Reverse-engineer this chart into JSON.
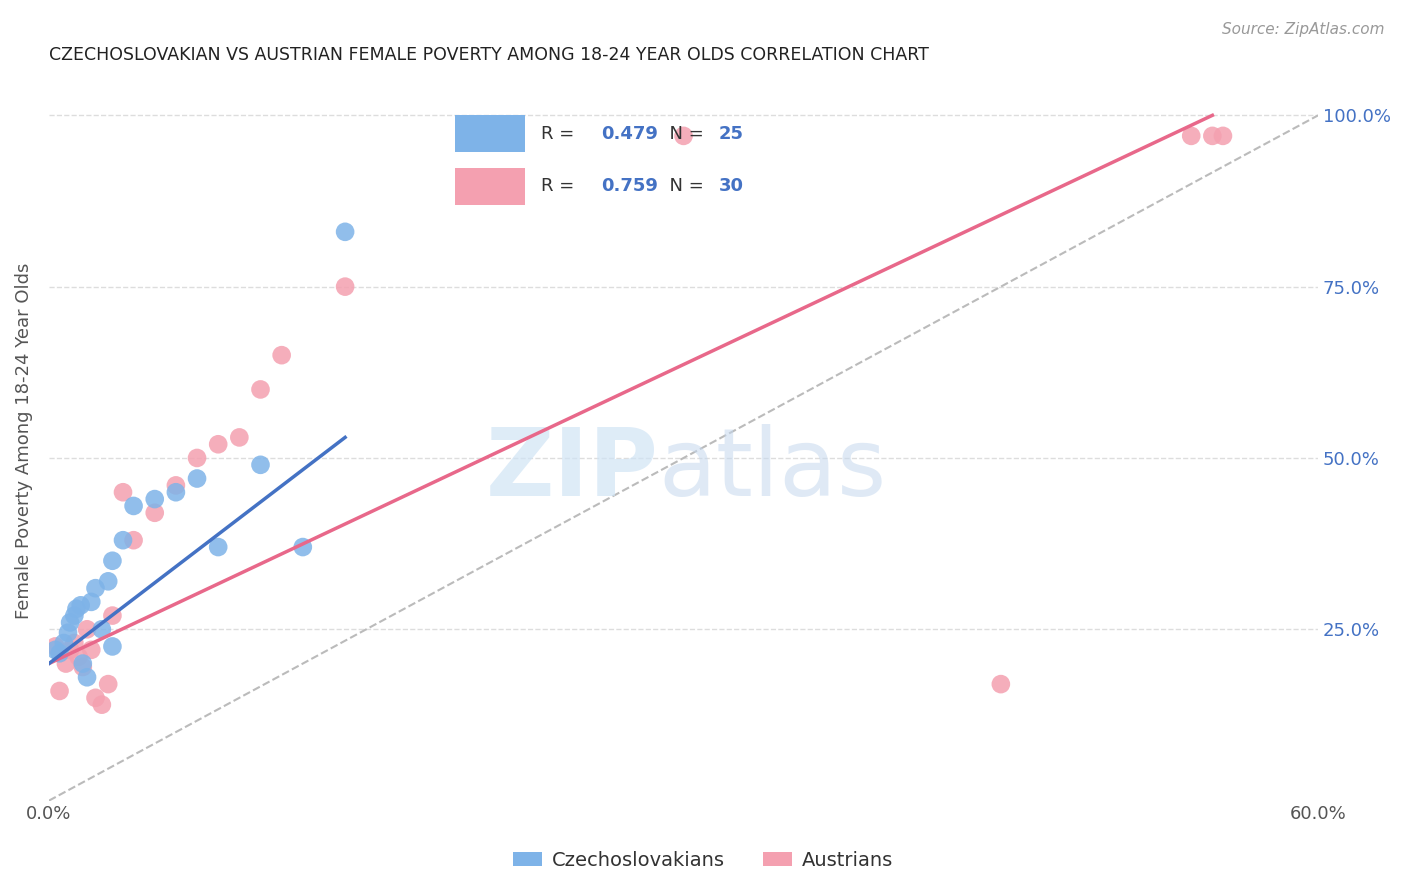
{
  "title": "CZECHOSLOVAKIAN VS AUSTRIAN FEMALE POVERTY AMONG 18-24 YEAR OLDS CORRELATION CHART",
  "source": "Source: ZipAtlas.com",
  "ylabel": "Female Poverty Among 18-24 Year Olds",
  "xmin": 0.0,
  "xmax": 60.0,
  "ymin": 0.0,
  "ymax": 105.0,
  "yticks_right": [
    25.0,
    50.0,
    75.0,
    100.0
  ],
  "czech_color": "#7EB3E8",
  "austrian_color": "#F4A0B0",
  "czech_line_color": "#4472C4",
  "austrian_line_color": "#E8688A",
  "czech_R": 0.479,
  "czech_N": 25,
  "austrian_R": 0.759,
  "austrian_N": 30,
  "czech_scatter_x": [
    0.3,
    0.5,
    0.7,
    0.9,
    1.0,
    1.2,
    1.3,
    1.5,
    1.6,
    1.8,
    2.0,
    2.2,
    2.5,
    2.8,
    3.0,
    3.5,
    4.0,
    5.0,
    6.0,
    7.0,
    8.0,
    10.0,
    12.0,
    14.0,
    3.0
  ],
  "czech_scatter_y": [
    22.0,
    21.5,
    23.0,
    24.5,
    26.0,
    27.0,
    28.0,
    28.5,
    20.0,
    18.0,
    29.0,
    31.0,
    25.0,
    32.0,
    35.0,
    38.0,
    43.0,
    44.0,
    45.0,
    47.0,
    37.0,
    49.0,
    37.0,
    83.0,
    22.5
  ],
  "austrian_scatter_x": [
    0.3,
    0.5,
    0.8,
    1.0,
    1.2,
    1.4,
    1.6,
    1.8,
    2.0,
    2.2,
    2.5,
    2.8,
    3.0,
    3.5,
    4.0,
    5.0,
    6.0,
    7.0,
    8.0,
    9.0,
    10.0,
    11.0,
    14.0,
    20.0,
    22.0,
    30.0,
    45.0,
    54.0,
    55.0,
    55.5
  ],
  "austrian_scatter_y": [
    22.5,
    16.0,
    20.0,
    22.0,
    23.0,
    21.0,
    19.5,
    25.0,
    22.0,
    15.0,
    14.0,
    17.0,
    27.0,
    45.0,
    38.0,
    42.0,
    46.0,
    50.0,
    52.0,
    53.0,
    60.0,
    65.0,
    75.0,
    97.0,
    97.0,
    97.0,
    17.0,
    97.0,
    97.0,
    97.0
  ],
  "czech_line_x0": 0.0,
  "czech_line_y0": 20.0,
  "czech_line_x1": 14.0,
  "czech_line_y1": 53.0,
  "austrian_line_x0": 0.0,
  "austrian_line_y0": 20.0,
  "austrian_line_x1": 55.0,
  "austrian_line_y1": 100.0,
  "ref_line_x0": 0.0,
  "ref_line_y0": 0.0,
  "ref_line_x1": 60.0,
  "ref_line_y1": 100.0
}
